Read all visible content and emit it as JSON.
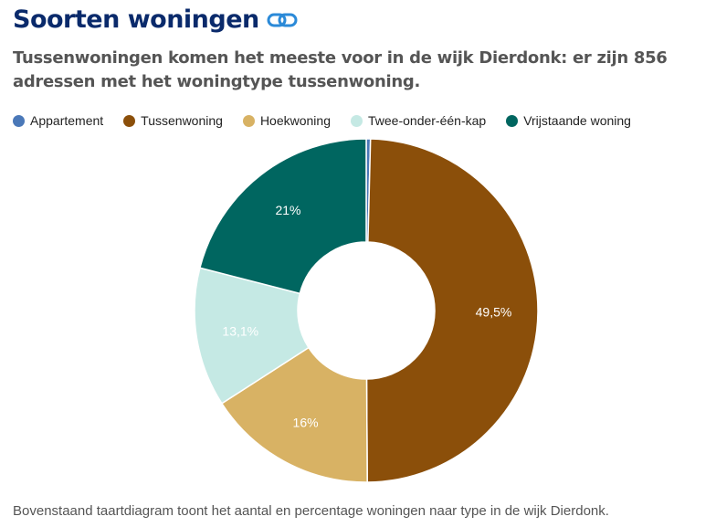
{
  "title": "Soorten woningen",
  "subtitle": "Tussenwoningen komen het meeste voor in de wijk Dierdonk: er zijn 856 adressen met het woningtype tussenwoning.",
  "footer": "Bovenstaand taartdiagram toont het aantal en percentage woningen naar type in de wijk Dierdonk.",
  "chart_data": {
    "type": "pie",
    "variant": "donut",
    "categories": [
      "Appartement",
      "Tussenwoning",
      "Hoekwoning",
      "Twee-onder-één-kap",
      "Vrijstaande woning"
    ],
    "values": [
      0.4,
      49.5,
      16,
      13.1,
      21
    ],
    "labels": [
      "",
      "49,5%",
      "16%",
      "13,1%",
      "21%"
    ],
    "colors": [
      "#4a78b8",
      "#8b4f0a",
      "#d8b264",
      "#c5e9e4",
      "#006660"
    ],
    "label_colors": [
      "#fff",
      "#fff",
      "#fff",
      "#fff",
      "#fff"
    ],
    "legend_position": "top-left"
  }
}
